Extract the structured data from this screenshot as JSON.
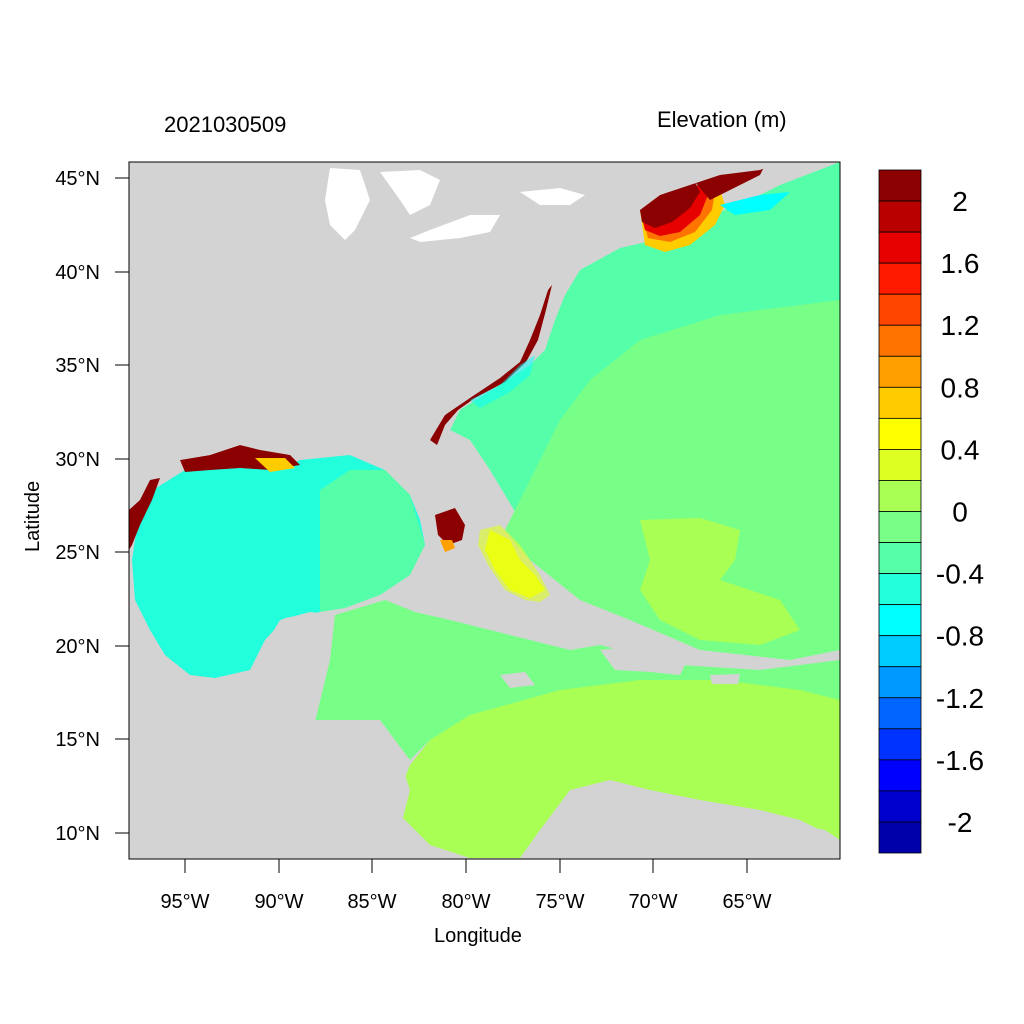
{
  "plot": {
    "timestamp": "2021030509",
    "variable_label": "Elevation (m)",
    "xlabel": "Longitude",
    "ylabel": "Latitude"
  },
  "axes": {
    "lon_ticks": [
      "95°W",
      "90°W",
      "85°W",
      "80°W",
      "75°W",
      "70°W",
      "65°W"
    ],
    "lat_ticks": [
      "45°N",
      "40°N",
      "35°N",
      "30°N",
      "25°N",
      "20°N",
      "15°N",
      "10°N"
    ]
  },
  "colorbar": {
    "labels": [
      "2",
      "1.6",
      "1.2",
      "0.8",
      "0.4",
      "0",
      "-0.4",
      "-0.8",
      "-1.2",
      "-1.6",
      "-2"
    ],
    "colors": [
      "#8b0000",
      "#b80000",
      "#e60000",
      "#ff1a00",
      "#ff4500",
      "#ff7300",
      "#ffa000",
      "#ffcc00",
      "#ffff00",
      "#ddff22",
      "#aaff55",
      "#77ff88",
      "#55ffaa",
      "#22ffdd",
      "#00ffff",
      "#00ccff",
      "#0099ff",
      "#0066ff",
      "#0033ff",
      "#0000ff",
      "#0000cc",
      "#0000aa"
    ]
  },
  "colors": {
    "land": "#d3d3d3",
    "ocean_gulf": "#22ffdd",
    "ocean_atlantic": "#55ffaa",
    "ocean_caribbean": "#77ff88",
    "south_caribbean": "#aaff55",
    "surge_high": "#8b0000"
  }
}
